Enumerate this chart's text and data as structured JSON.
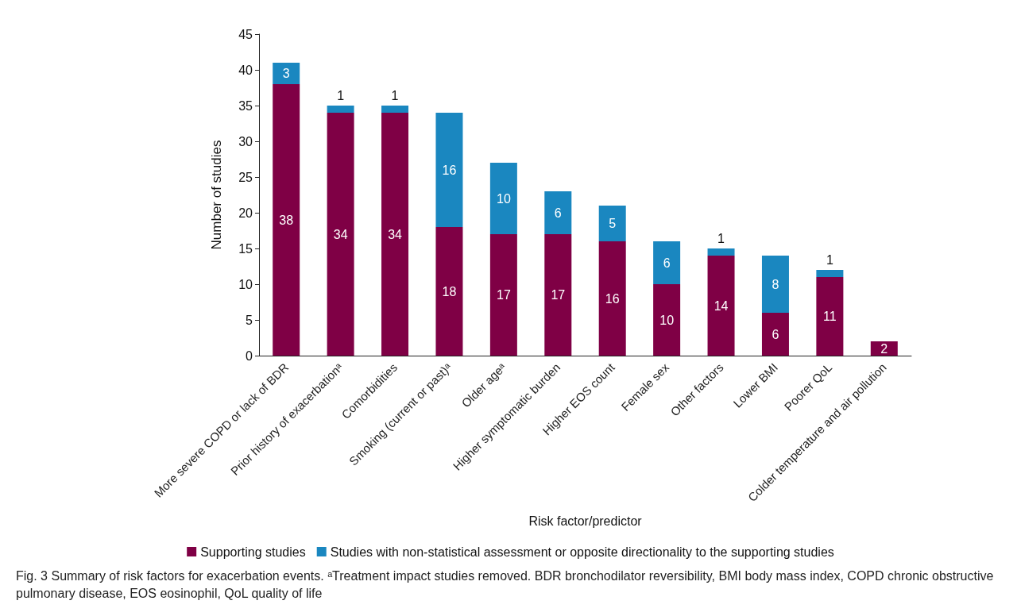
{
  "chart_data": {
    "type": "bar",
    "stacked": true,
    "xlabel": "Risk factor/predictor",
    "ylabel": "Number of studies",
    "categories": [
      "More severe COPD or lack of BDR",
      "Prior history of exacerbationᵃ",
      "Comorbidities",
      "Smoking (current or past)ᵃ",
      "Older ageᵃ",
      "Higher symptomatic burden",
      "Higher EOS count",
      "Female sex",
      "Other factors",
      "Lower BMI",
      "Poorer QoL",
      "Colder temperature and air pollution"
    ],
    "series": [
      {
        "name": "Supporting studies",
        "color": "#7f0045",
        "values": [
          38,
          34,
          34,
          18,
          17,
          17,
          16,
          10,
          14,
          6,
          11,
          2
        ]
      },
      {
        "name": "Studies with non-statistical assessment or opposite directionality to the supporting studies",
        "color": "#1a87c0",
        "values": [
          3,
          1,
          1,
          16,
          10,
          6,
          5,
          6,
          1,
          8,
          1,
          null
        ]
      }
    ],
    "ylim": [
      0,
      45
    ],
    "yticks": [
      0,
      5,
      10,
      15,
      20,
      25,
      30,
      35,
      40,
      45
    ],
    "grid": false,
    "legend": "bottom",
    "data_labels": true,
    "annotations": [
      "Fig. 3  Summary of risk factors for exacerbation events. ᵃTreatment impact studies removed. BDR bronchodilator reversibility, BMI body mass index, COPD chronic obstructive pulmonary disease, EOS eosinophil, QoL quality of life"
    ]
  }
}
